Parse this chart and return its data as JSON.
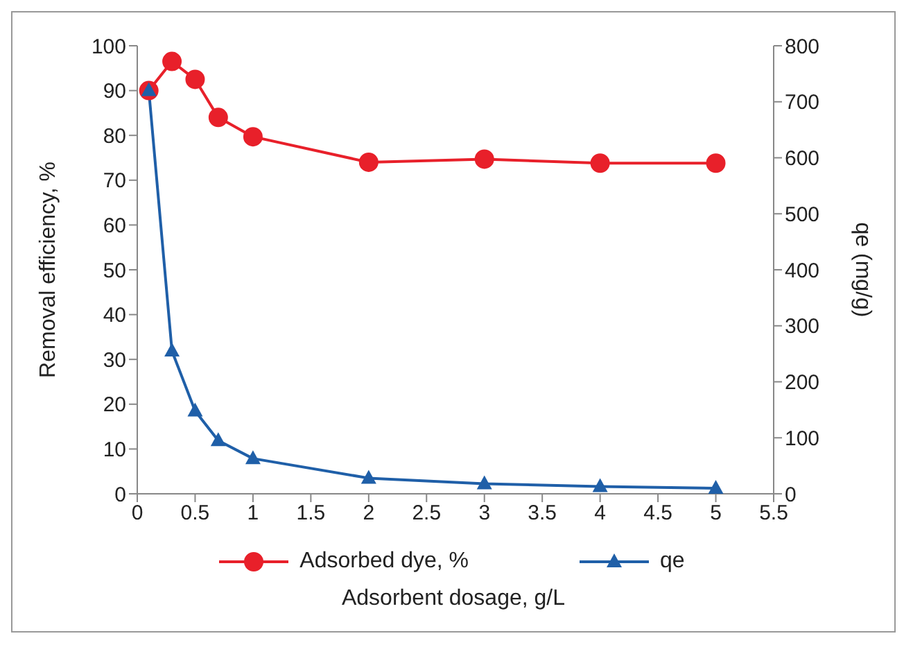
{
  "chart_data": {
    "type": "line",
    "xlabel": "Adsorbent dosage, g/L",
    "ylabel": "Removal efficiency, %",
    "y2label": "qe (mg/g)",
    "x": [
      0.1,
      0.3,
      0.5,
      0.7,
      1,
      2,
      3,
      4,
      5
    ],
    "series": [
      {
        "name": "Adsorbed dye, %",
        "color": "#e8202a",
        "marker": "circle",
        "values": [
          90,
          96.5,
          92.5,
          84,
          79.7,
          74,
          74.7,
          73.8,
          73.8
        ]
      },
      {
        "name": "qe",
        "color": "#1f5fa8",
        "marker": "triangle",
        "axis": "y2",
        "values": [
          720,
          255,
          148,
          95,
          63,
          28,
          18,
          13,
          10
        ]
      }
    ],
    "xlim": [
      0,
      5.5
    ],
    "xticks": [
      0,
      0.5,
      1,
      1.5,
      2,
      2.5,
      3,
      3.5,
      4,
      4.5,
      5,
      5.5
    ],
    "ylim": [
      0,
      100
    ],
    "yticks": [
      0,
      10,
      20,
      30,
      40,
      50,
      60,
      70,
      80,
      90,
      100
    ],
    "y2lim": [
      0,
      800
    ],
    "y2ticks": [
      0,
      100,
      200,
      300,
      400,
      500,
      600,
      700,
      800
    ],
    "grid": false,
    "legend": "bottom"
  }
}
